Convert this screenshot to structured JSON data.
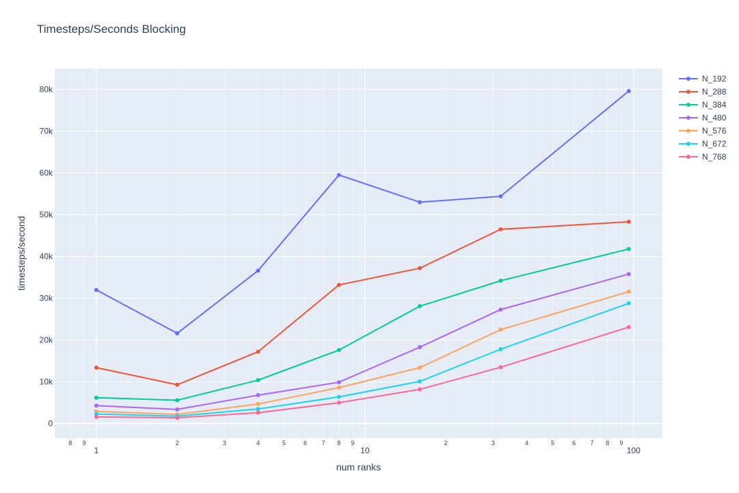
{
  "chart_data": {
    "type": "line",
    "title": "Timesteps/Seconds Blocking",
    "xlabel": "num ranks",
    "ylabel": "timesteps/second",
    "x_scale": "log",
    "xlim": [
      0.7,
      128
    ],
    "ylim": [
      -3500,
      85000
    ],
    "grid": true,
    "legend_position": "right",
    "x_major_ticks": [
      {
        "value": 1,
        "label": "1"
      },
      {
        "value": 10,
        "label": "10"
      },
      {
        "value": 100,
        "label": "100"
      }
    ],
    "x_minor_ticks": [
      {
        "value": 0.8,
        "label": "8"
      },
      {
        "value": 0.9,
        "label": "9"
      },
      {
        "value": 2,
        "label": "2"
      },
      {
        "value": 3,
        "label": "3"
      },
      {
        "value": 4,
        "label": "4"
      },
      {
        "value": 5,
        "label": "5"
      },
      {
        "value": 6,
        "label": "6"
      },
      {
        "value": 7,
        "label": "7"
      },
      {
        "value": 8,
        "label": "8"
      },
      {
        "value": 9,
        "label": "9"
      },
      {
        "value": 20,
        "label": "2"
      },
      {
        "value": 30,
        "label": "3"
      },
      {
        "value": 40,
        "label": "4"
      },
      {
        "value": 50,
        "label": "5"
      },
      {
        "value": 60,
        "label": "6"
      },
      {
        "value": 70,
        "label": "7"
      },
      {
        "value": 80,
        "label": "8"
      },
      {
        "value": 90,
        "label": "9"
      }
    ],
    "y_ticks": [
      {
        "value": 0,
        "label": "0"
      },
      {
        "value": 10000,
        "label": "10k"
      },
      {
        "value": 20000,
        "label": "20k"
      },
      {
        "value": 30000,
        "label": "30k"
      },
      {
        "value": 40000,
        "label": "40k"
      },
      {
        "value": 50000,
        "label": "50k"
      },
      {
        "value": 60000,
        "label": "60k"
      },
      {
        "value": 70000,
        "label": "70k"
      },
      {
        "value": 80000,
        "label": "80k"
      }
    ],
    "x": [
      1,
      2,
      4,
      8,
      16,
      32,
      96
    ],
    "series": [
      {
        "name": "N_192",
        "color": "#636efa",
        "values": [
          32000,
          21600,
          36600,
          59500,
          53000,
          54400,
          79600
        ]
      },
      {
        "name": "N_288",
        "color": "#ef553b",
        "values": [
          13400,
          9300,
          17200,
          33200,
          37200,
          46500,
          48300
        ]
      },
      {
        "name": "N_384",
        "color": "#00cc96",
        "values": [
          6200,
          5600,
          10400,
          17600,
          28100,
          34200,
          41800
        ]
      },
      {
        "name": "N_480",
        "color": "#ab63fa",
        "values": [
          4300,
          3400,
          6800,
          9900,
          18300,
          27300,
          35800
        ]
      },
      {
        "name": "N_576",
        "color": "#ffa15a",
        "values": [
          2900,
          2200,
          4700,
          8600,
          13400,
          22500,
          31600
        ]
      },
      {
        "name": "N_672",
        "color": "#19d3f3",
        "values": [
          2300,
          1800,
          3500,
          6400,
          10100,
          17800,
          28800
        ]
      },
      {
        "name": "N_768",
        "color": "#ff6692",
        "values": [
          1600,
          1400,
          2600,
          5000,
          8200,
          13500,
          23100
        ]
      }
    ]
  }
}
